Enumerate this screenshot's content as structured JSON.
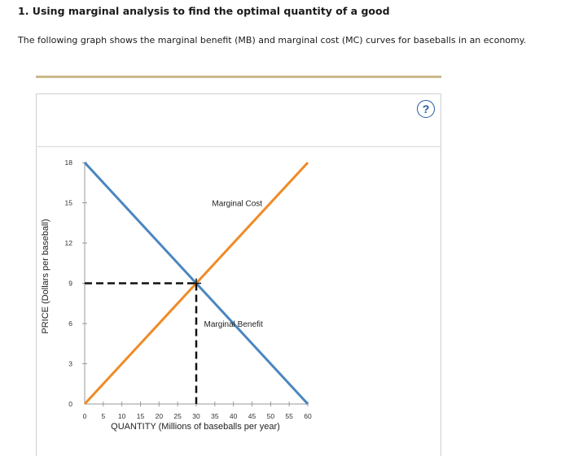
{
  "question": {
    "title": "1. Using marginal analysis to find the optimal quantity of a good",
    "text": "The following graph shows the marginal benefit (MB) and marginal cost (MC) curves for baseballs in an economy."
  },
  "help": {
    "label": "?",
    "icon": "question-circle-icon"
  },
  "colors": {
    "mb": "#4a86c0",
    "mc": "#f08a24",
    "guide": "#111111",
    "accent": "#1f5aa6"
  },
  "chart_data": {
    "type": "line",
    "xlabel": "QUANTITY (Millions of baseballs per year)",
    "ylabel": "PRICE (Dollars per baseball)",
    "xlim": [
      0,
      60
    ],
    "ylim": [
      0,
      18
    ],
    "xticks": [
      0,
      5,
      10,
      15,
      20,
      25,
      30,
      35,
      40,
      45,
      50,
      55,
      60
    ],
    "yticks": [
      0,
      3,
      6,
      9,
      12,
      15,
      18
    ],
    "series": [
      {
        "name": "Marginal Benefit",
        "x": [
          0,
          60
        ],
        "y": [
          18,
          0
        ]
      },
      {
        "name": "Marginal Cost",
        "x": [
          0,
          60
        ],
        "y": [
          0,
          18
        ]
      }
    ],
    "equilibrium": {
      "x": 30,
      "y": 9
    },
    "annotations": [
      {
        "text": "Marginal Cost",
        "x": 41,
        "y": 15
      },
      {
        "text": "Marginal Benefit",
        "x": 40,
        "y": 6
      }
    ]
  }
}
